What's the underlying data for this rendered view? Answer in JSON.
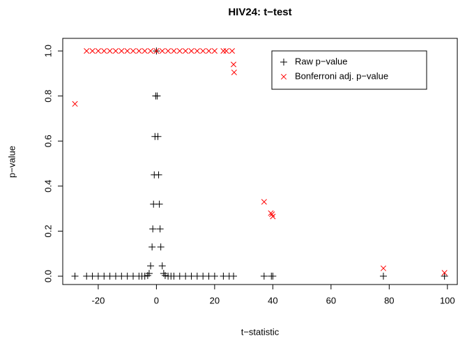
{
  "chart_data": {
    "type": "scatter",
    "title": "HIV24: t−test",
    "x_label": "t−statistic",
    "y_label": "p−value",
    "xlim": [
      -32.2,
      103.4
    ],
    "ylim": [
      -0.037,
      1.056
    ],
    "xticks": [
      -20,
      0,
      20,
      40,
      60,
      80,
      100
    ],
    "yticks": [
      {
        "value": 0,
        "label": "0.0"
      },
      0.2,
      0.4,
      0.6,
      0.8,
      {
        "value": 1,
        "label": "1.0"
      }
    ],
    "legend": "topright",
    "series": [
      {
        "name": "Raw p−value",
        "color": "#000000",
        "marker": "plus",
        "x": [
          -28,
          -24,
          -22,
          -20,
          -18,
          -16,
          -14,
          -12,
          -10,
          -8,
          -6,
          -5,
          -4,
          -3,
          -2.5,
          -2,
          -1.5,
          -1.25,
          -1,
          -0.75,
          -0.5,
          -0.25,
          0,
          0.25,
          0.5,
          0.75,
          1,
          1.25,
          1.5,
          2,
          2.5,
          3,
          4,
          5,
          6,
          8,
          10,
          12,
          14,
          16,
          18,
          20,
          23,
          25,
          26.5,
          37,
          39.5,
          40,
          78,
          99
        ],
        "values": [
          0,
          0,
          0,
          0,
          0,
          0,
          0,
          0,
          0,
          0,
          0,
          0,
          0,
          0.003,
          0.012,
          0.046,
          0.13,
          0.21,
          0.32,
          0.45,
          0.62,
          0.8,
          1,
          0.8,
          0.62,
          0.45,
          0.32,
          0.21,
          0.13,
          0.046,
          0.012,
          0.003,
          0,
          0,
          0,
          0,
          0,
          0,
          0,
          0,
          0,
          0,
          0,
          0,
          0,
          0,
          0,
          0,
          0,
          0
        ]
      },
      {
        "name": "Bonferroni adj. p−value",
        "color": "#ff0000",
        "marker": "cross",
        "x": [
          -28,
          -24,
          -22,
          -20,
          -18,
          -16,
          -14,
          -12,
          -10,
          -8,
          -6,
          -4,
          -2,
          0,
          2,
          4,
          6,
          8,
          10,
          12,
          14,
          16,
          18,
          20,
          23,
          24,
          26,
          26.5,
          26.7,
          37,
          39.3,
          39.7,
          40,
          78,
          99
        ],
        "values": [
          0.765,
          1,
          1,
          1,
          1,
          1,
          1,
          1,
          1,
          1,
          1,
          1,
          1,
          1,
          1,
          1,
          1,
          1,
          1,
          1,
          1,
          1,
          1,
          1,
          1,
          1,
          1,
          0.94,
          0.905,
          0.33,
          0.28,
          0.275,
          0.265,
          0.035,
          0.015
        ]
      }
    ]
  }
}
